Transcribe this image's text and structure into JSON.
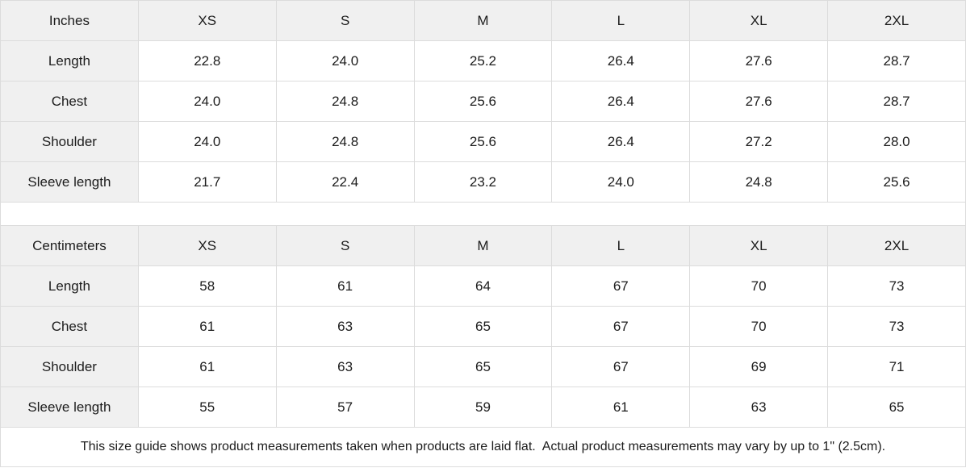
{
  "tables": [
    {
      "unit": "Inches",
      "sizes": [
        "XS",
        "S",
        "M",
        "L",
        "XL",
        "2XL"
      ],
      "rows": [
        {
          "label": "Length",
          "values": [
            "22.8",
            "24.0",
            "25.2",
            "26.4",
            "27.6",
            "28.7"
          ]
        },
        {
          "label": "Chest",
          "values": [
            "24.0",
            "24.8",
            "25.6",
            "26.4",
            "27.6",
            "28.7"
          ]
        },
        {
          "label": "Shoulder",
          "values": [
            "24.0",
            "24.8",
            "25.6",
            "26.4",
            "27.2",
            "28.0"
          ]
        },
        {
          "label": "Sleeve length",
          "values": [
            "21.7",
            "22.4",
            "23.2",
            "24.0",
            "24.8",
            "25.6"
          ]
        }
      ]
    },
    {
      "unit": "Centimeters",
      "sizes": [
        "XS",
        "S",
        "M",
        "L",
        "XL",
        "2XL"
      ],
      "rows": [
        {
          "label": "Length",
          "values": [
            "58",
            "61",
            "64",
            "67",
            "70",
            "73"
          ]
        },
        {
          "label": "Chest",
          "values": [
            "61",
            "63",
            "65",
            "67",
            "70",
            "73"
          ]
        },
        {
          "label": "Shoulder",
          "values": [
            "61",
            "63",
            "65",
            "67",
            "69",
            "71"
          ]
        },
        {
          "label": "Sleeve length",
          "values": [
            "55",
            "57",
            "59",
            "61",
            "63",
            "65"
          ]
        }
      ]
    }
  ],
  "footer": {
    "note": "This size guide shows product measurements taken when products are laid flat.  Actual product measurements may vary by up to 1\" (2.5cm)."
  },
  "colors": {
    "header_bg": "#f0f0f0",
    "border": "#dcdcdc",
    "text": "#1c1c1c"
  }
}
